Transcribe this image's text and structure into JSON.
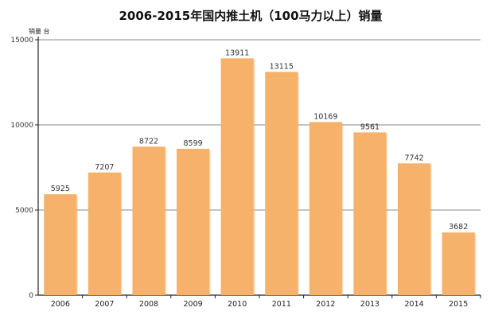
{
  "chart_data": {
    "type": "bar",
    "title": "2006-2015年国内推土机（100马力以上）销量",
    "ylabel": "销量 台",
    "xlabel": "",
    "categories": [
      "2006",
      "2007",
      "2008",
      "2009",
      "2010",
      "2011",
      "2012",
      "2013",
      "2014",
      "2015"
    ],
    "values": [
      5925,
      7207,
      8722,
      8599,
      13911,
      13115,
      10169,
      9561,
      7742,
      3682
    ],
    "ylim": [
      0,
      15000
    ],
    "yticks": [
      "0",
      "5000",
      "10000",
      "15000"
    ],
    "grid": true,
    "legend": "none",
    "bar_color": "#F6B26B",
    "bar_shadow_color": "#E49A52"
  }
}
